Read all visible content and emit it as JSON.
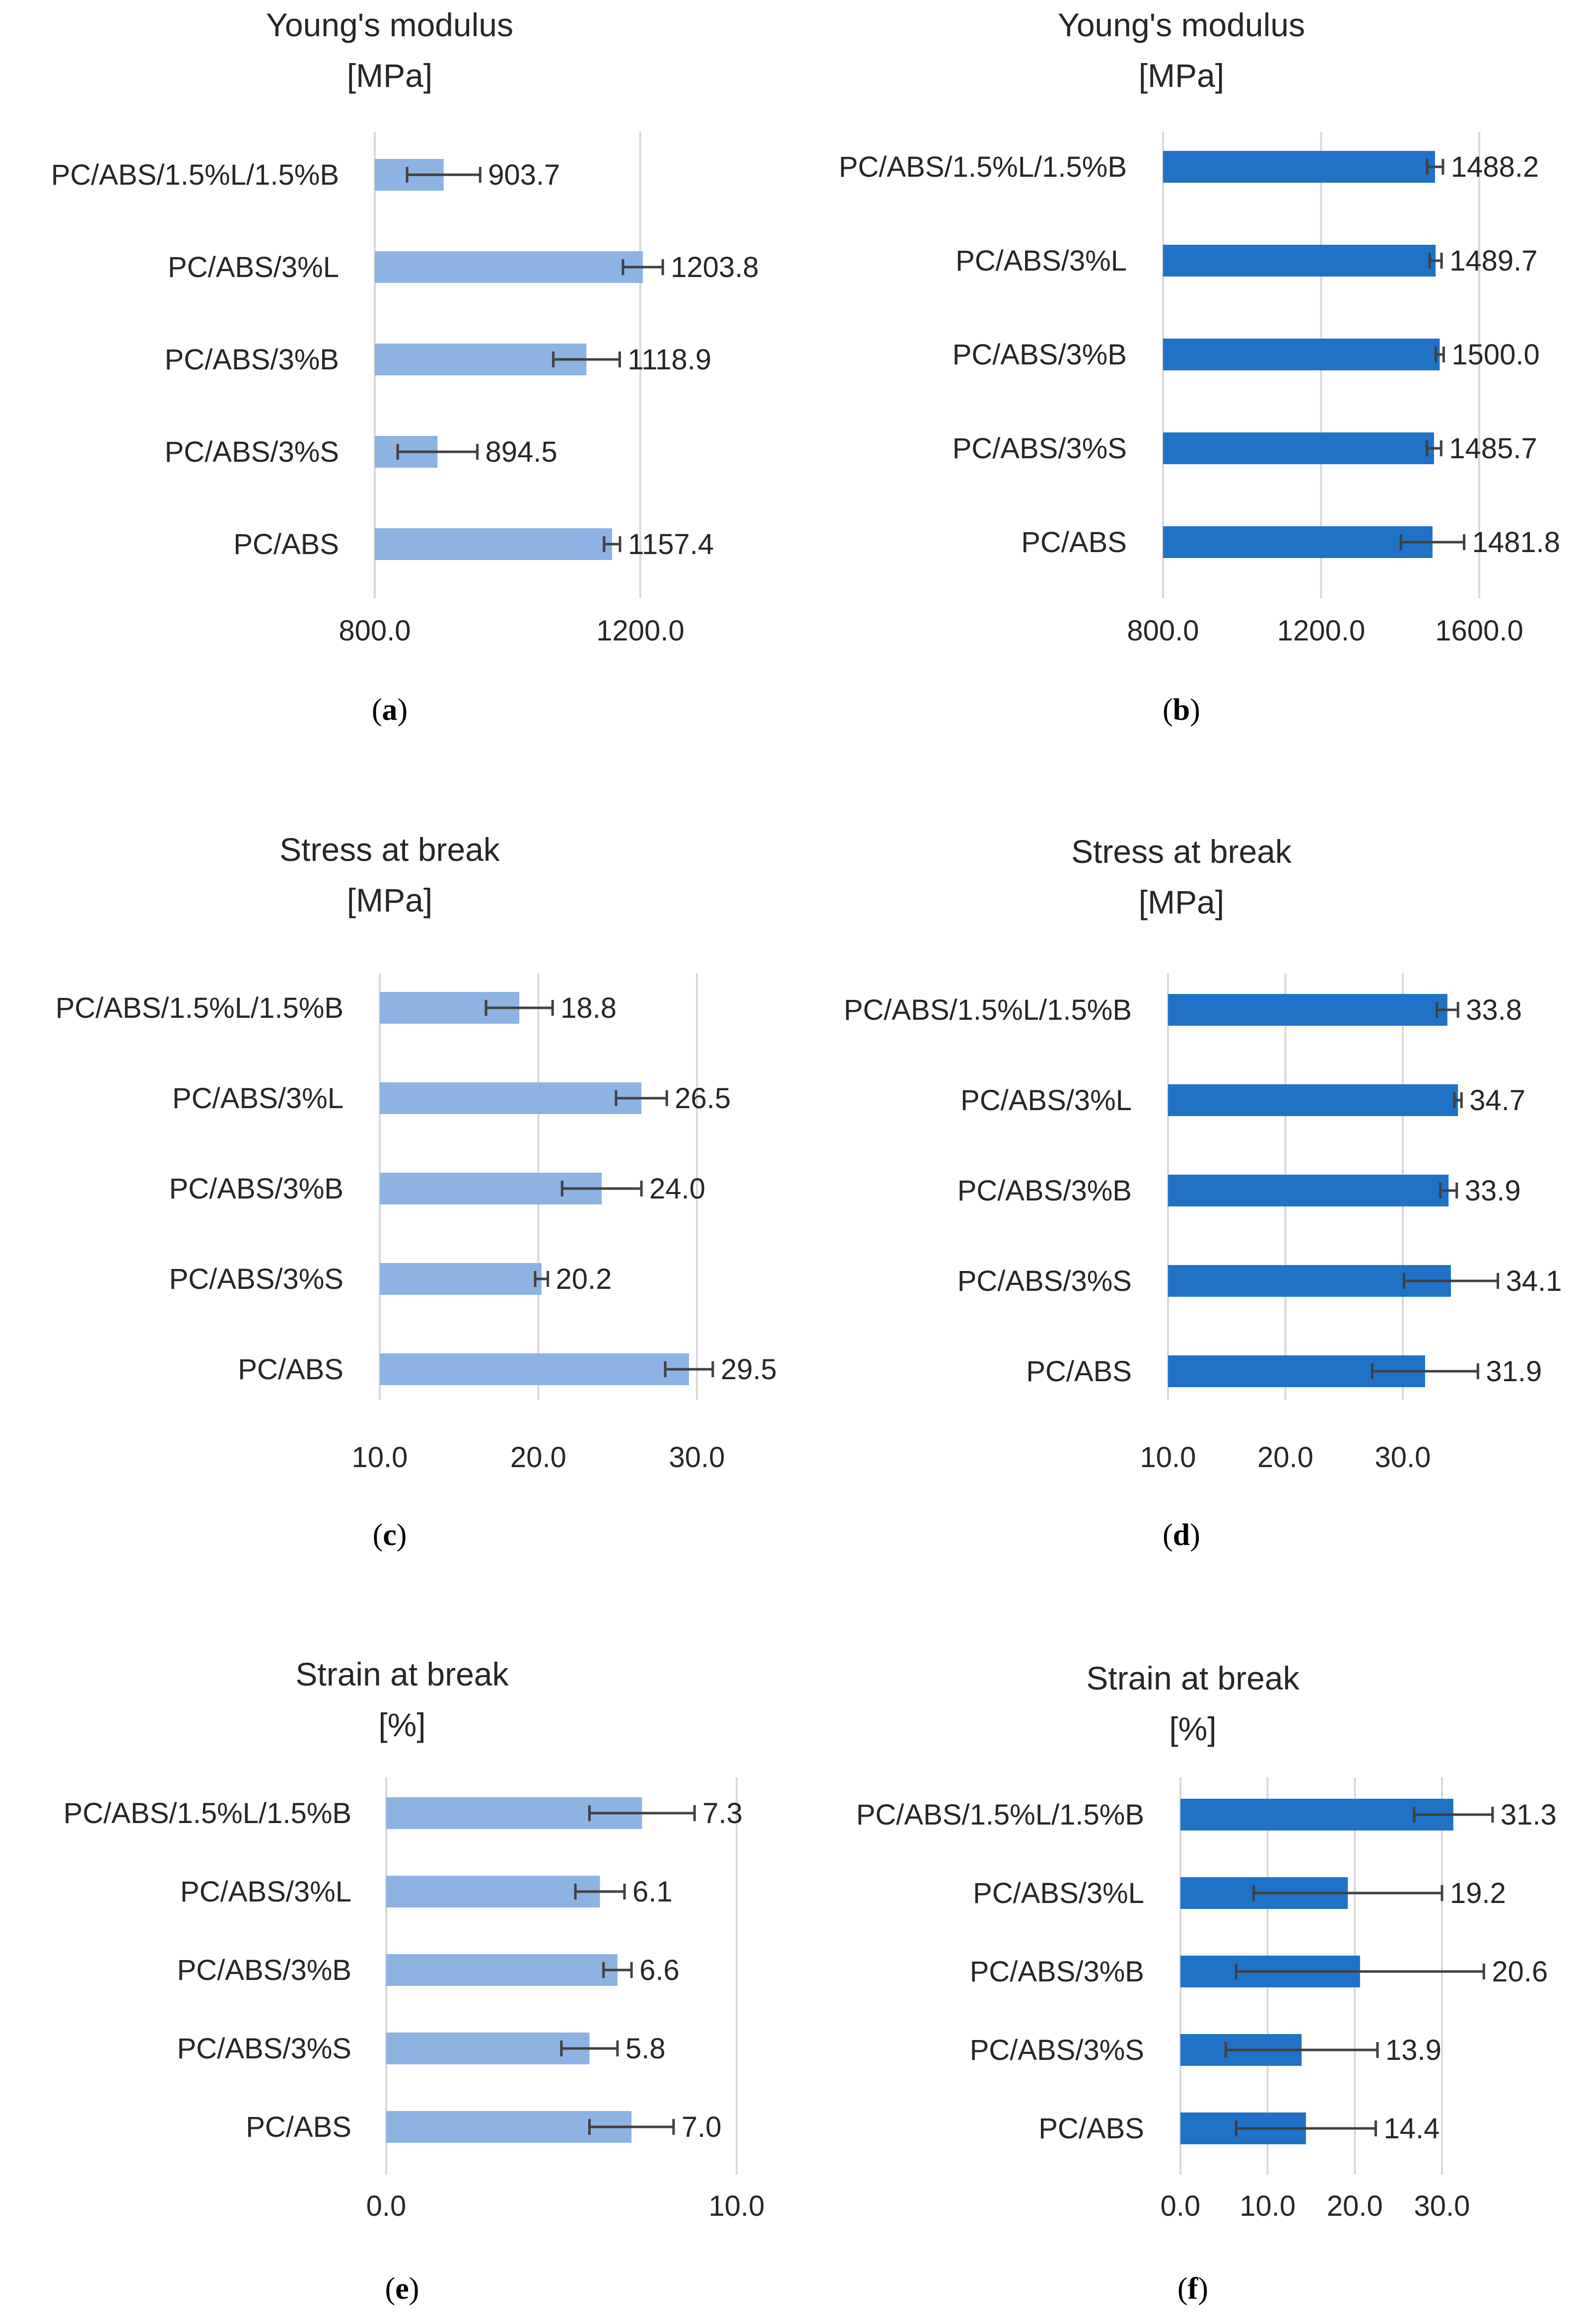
{
  "figure": {
    "colors": {
      "light_bar": "#8db3e2",
      "dark_bar": "#1f72c6",
      "grid": "#d9d9d9",
      "error_bar": "#404040",
      "text": "#262626"
    }
  },
  "chart_data": [
    {
      "id": "a",
      "panel_label": "a",
      "type": "bar",
      "orientation": "horizontal",
      "style": "light",
      "title": "Young's modulus",
      "subtitle": "[MPa]",
      "categories": [
        "PC/ABS/1.5%L/1.5%B",
        "PC/ABS/3%L",
        "PC/ABS/3%B",
        "PC/ABS/3%S",
        "PC/ABS"
      ],
      "values": [
        903.7,
        1203.8,
        1118.9,
        894.5,
        1157.4
      ],
      "value_labels": [
        "903.7",
        "1203.8",
        "1118.9",
        "894.5",
        "1157.4"
      ],
      "errors": [
        55,
        30,
        50,
        60,
        12
      ],
      "xlim": [
        800,
        1200
      ],
      "ticks": [
        800,
        1200
      ],
      "tick_labels": [
        "800.0",
        "1200.0"
      ]
    },
    {
      "id": "b",
      "panel_label": "b",
      "type": "bar",
      "orientation": "horizontal",
      "style": "dark",
      "title": "Young's modulus",
      "subtitle": "[MPa]",
      "categories": [
        "PC/ABS/1.5%L/1.5%B",
        "PC/ABS/3%L",
        "PC/ABS/3%B",
        "PC/ABS/3%S",
        "PC/ABS"
      ],
      "values": [
        1488.2,
        1489.7,
        1500.0,
        1485.7,
        1481.8
      ],
      "value_labels": [
        "1488.2",
        "1489.7",
        "1500.0",
        "1485.7",
        "1481.8"
      ],
      "errors": [
        20,
        15,
        10,
        18,
        80
      ],
      "xlim": [
        800,
        1600
      ],
      "ticks": [
        800,
        1200,
        1600
      ],
      "tick_labels": [
        "800.0",
        "1200.0",
        "1600.0"
      ]
    },
    {
      "id": "c",
      "panel_label": "c",
      "type": "bar",
      "orientation": "horizontal",
      "style": "light",
      "title": "Stress at break",
      "subtitle": "[MPa]",
      "categories": [
        "PC/ABS/1.5%L/1.5%B",
        "PC/ABS/3%L",
        "PC/ABS/3%B",
        "PC/ABS/3%S",
        "PC/ABS"
      ],
      "values": [
        18.8,
        26.5,
        24.0,
        20.2,
        29.5
      ],
      "value_labels": [
        "18.8",
        "26.5",
        "24.0",
        "20.2",
        "29.5"
      ],
      "errors": [
        2.1,
        1.6,
        2.5,
        0.4,
        1.5
      ],
      "xlim": [
        10,
        30
      ],
      "ticks": [
        10,
        20,
        30
      ],
      "tick_labels": [
        "10.0",
        "20.0",
        "30.0"
      ]
    },
    {
      "id": "d",
      "panel_label": "d",
      "type": "bar",
      "orientation": "horizontal",
      "style": "dark",
      "title": "Stress at break",
      "subtitle": "[MPa]",
      "categories": [
        "PC/ABS/1.5%L/1.5%B",
        "PC/ABS/3%L",
        "PC/ABS/3%B",
        "PC/ABS/3%S",
        "PC/ABS"
      ],
      "values": [
        33.8,
        34.7,
        33.9,
        34.1,
        31.9
      ],
      "value_labels": [
        "33.8",
        "34.7",
        "33.9",
        "34.1",
        "31.9"
      ],
      "errors": [
        0.9,
        0.3,
        0.7,
        4.0,
        4.5
      ],
      "xlim": [
        10,
        30
      ],
      "ticks": [
        10,
        20,
        30
      ],
      "tick_labels": [
        "10.0",
        "20.0",
        "30.0"
      ]
    },
    {
      "id": "e",
      "panel_label": "e",
      "type": "bar",
      "orientation": "horizontal",
      "style": "light",
      "title": "Strain at break",
      "subtitle": "[%]",
      "categories": [
        "PC/ABS/1.5%L/1.5%B",
        "PC/ABS/3%L",
        "PC/ABS/3%B",
        "PC/ABS/3%S",
        "PC/ABS"
      ],
      "values": [
        7.3,
        6.1,
        6.6,
        5.8,
        7.0
      ],
      "value_labels": [
        "7.3",
        "6.1",
        "6.6",
        "5.8",
        "7.0"
      ],
      "errors": [
        1.5,
        0.7,
        0.4,
        0.8,
        1.2
      ],
      "xlim": [
        0,
        10
      ],
      "ticks": [
        0,
        10
      ],
      "tick_labels": [
        "0.0",
        "10.0"
      ]
    },
    {
      "id": "f",
      "panel_label": "f",
      "type": "bar",
      "orientation": "horizontal",
      "style": "dark",
      "title": "Strain at break",
      "subtitle": "[%]",
      "categories": [
        "PC/ABS/1.5%L/1.5%B",
        "PC/ABS/3%L",
        "PC/ABS/3%B",
        "PC/ABS/3%S",
        "PC/ABS"
      ],
      "values": [
        31.3,
        19.2,
        20.6,
        13.9,
        14.4
      ],
      "value_labels": [
        "31.3",
        "19.2",
        "20.6",
        "13.9",
        "14.4"
      ],
      "errors": [
        4.5,
        10.8,
        14.2,
        8.7,
        8.0
      ],
      "xlim": [
        0,
        30
      ],
      "ticks": [
        0,
        10,
        20,
        30
      ],
      "tick_labels": [
        "0.0",
        "10.0",
        "20.0",
        "30.0"
      ]
    }
  ]
}
